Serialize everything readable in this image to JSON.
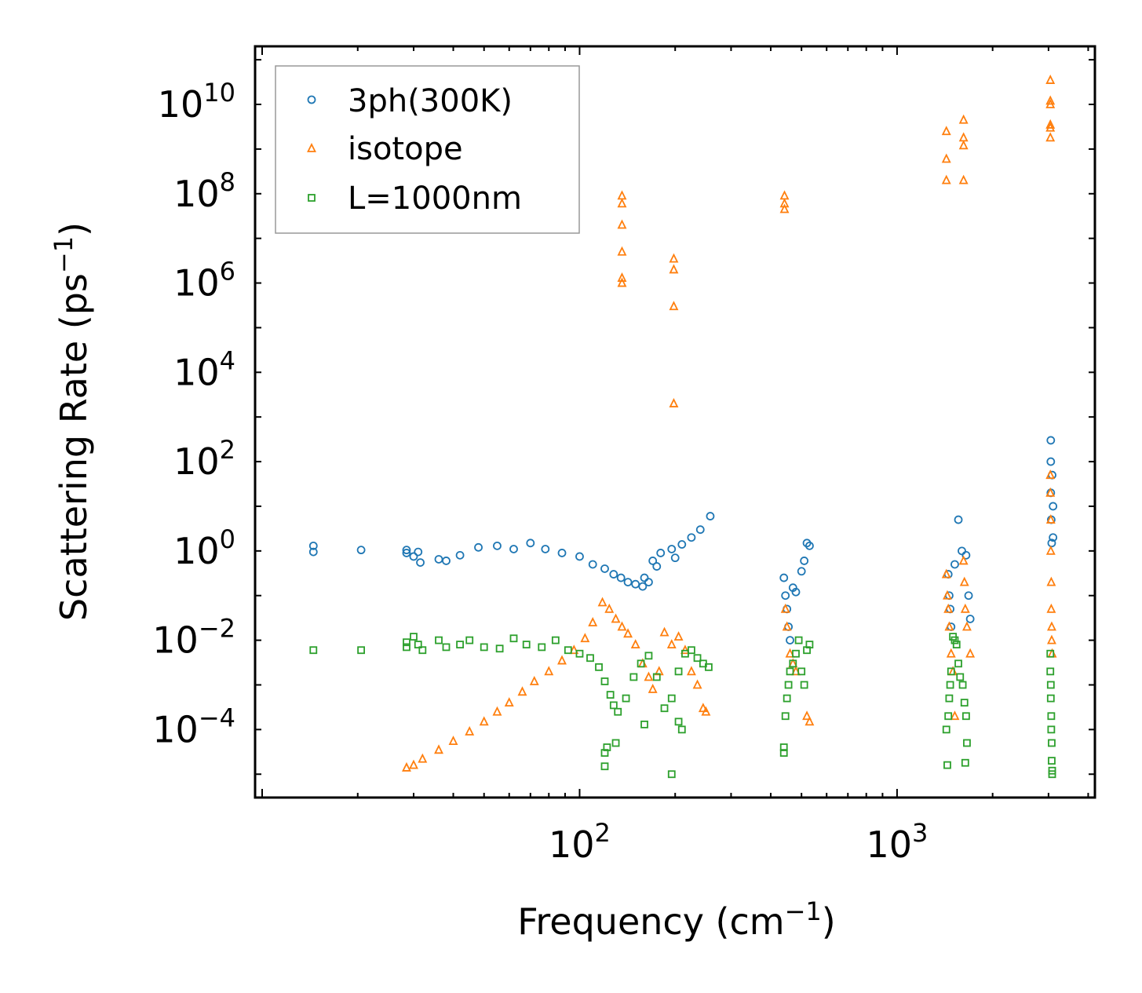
{
  "chart_data": {
    "type": "scatter",
    "xscale": "log",
    "yscale": "log",
    "xlim": [
      9.5,
      4200
    ],
    "ylim": [
      3e-06,
      200000000000.0
    ],
    "xlabel": "Frequency (cm",
    "xlabel_sup": "−1",
    "xlabel_end": ")",
    "ylabel": "Scattering Rate (ps",
    "ylabel_sup": "−1",
    "ylabel_end": ")",
    "x_ticks": [
      {
        "value": 100,
        "base": "10",
        "exp": "2"
      },
      {
        "value": 1000,
        "base": "10",
        "exp": "3"
      }
    ],
    "y_ticks": [
      {
        "value": 0.0001,
        "base": "10",
        "exp": "−4"
      },
      {
        "value": 0.01,
        "base": "10",
        "exp": "−2"
      },
      {
        "value": 1,
        "base": "10",
        "exp": "0"
      },
      {
        "value": 100,
        "base": "10",
        "exp": "2"
      },
      {
        "value": 10000.0,
        "base": "10",
        "exp": "4"
      },
      {
        "value": 1000000.0,
        "base": "10",
        "exp": "6"
      },
      {
        "value": 100000000.0,
        "base": "10",
        "exp": "8"
      },
      {
        "value": 10000000000.0,
        "base": "10",
        "exp": "10"
      }
    ],
    "legend_position": "top-left",
    "series": [
      {
        "name": "3ph(300K)",
        "marker": "circle",
        "color": "#1f77b4",
        "points": [
          [
            14.5,
            1.3
          ],
          [
            14.5,
            0.95
          ],
          [
            20.5,
            1.05
          ],
          [
            28.5,
            1.05
          ],
          [
            28.5,
            0.9
          ],
          [
            30,
            0.75
          ],
          [
            31,
            0.95
          ],
          [
            31.5,
            0.55
          ],
          [
            36,
            0.65
          ],
          [
            38,
            0.6
          ],
          [
            42,
            0.8
          ],
          [
            48,
            1.2
          ],
          [
            55,
            1.3
          ],
          [
            62,
            1.1
          ],
          [
            70,
            1.5
          ],
          [
            78,
            1.1
          ],
          [
            88,
            0.9
          ],
          [
            100,
            0.75
          ],
          [
            110,
            0.5
          ],
          [
            120,
            0.4
          ],
          [
            128,
            0.3
          ],
          [
            135,
            0.25
          ],
          [
            142,
            0.2
          ],
          [
            150,
            0.18
          ],
          [
            160,
            0.25
          ],
          [
            170,
            0.6
          ],
          [
            180,
            0.9
          ],
          [
            195,
            1.1
          ],
          [
            210,
            1.4
          ],
          [
            225,
            2.0
          ],
          [
            240,
            3.0
          ],
          [
            258,
            6.0
          ],
          [
            158,
            0.16
          ],
          [
            165,
            0.2
          ],
          [
            175,
            0.45
          ],
          [
            200,
            0.7
          ],
          [
            440,
            0.25
          ],
          [
            445,
            0.1
          ],
          [
            450,
            0.05
          ],
          [
            455,
            0.02
          ],
          [
            460,
            0.01
          ],
          [
            470,
            0.15
          ],
          [
            480,
            0.12
          ],
          [
            500,
            0.35
          ],
          [
            510,
            0.6
          ],
          [
            520,
            1.5
          ],
          [
            530,
            1.3
          ],
          [
            1450,
            0.3
          ],
          [
            1460,
            0.1
          ],
          [
            1470,
            0.05
          ],
          [
            1480,
            0.02
          ],
          [
            1520,
            0.5
          ],
          [
            1560,
            5.0
          ],
          [
            1600,
            1.0
          ],
          [
            1650,
            0.8
          ],
          [
            1680,
            0.1
          ],
          [
            1700,
            0.03
          ],
          [
            3050,
            300
          ],
          [
            3050,
            100
          ],
          [
            3050,
            20
          ],
          [
            3060,
            5
          ],
          [
            3070,
            1.5
          ],
          [
            3080,
            50
          ],
          [
            3100,
            10
          ],
          [
            3100,
            2
          ]
        ]
      },
      {
        "name": "isotope",
        "marker": "triangle",
        "color": "#ff7f0e",
        "points": [
          [
            28.5,
            1.4e-05
          ],
          [
            30,
            1.6e-05
          ],
          [
            32,
            2.2e-05
          ],
          [
            36,
            3.5e-05
          ],
          [
            40,
            5.5e-05
          ],
          [
            45,
            9e-05
          ],
          [
            50,
            0.00015
          ],
          [
            55,
            0.00025
          ],
          [
            60,
            0.0004
          ],
          [
            66,
            0.0007
          ],
          [
            72,
            0.0012
          ],
          [
            80,
            0.002
          ],
          [
            88,
            0.0035
          ],
          [
            96,
            0.006
          ],
          [
            104,
            0.011
          ],
          [
            110,
            0.025
          ],
          [
            118,
            0.07
          ],
          [
            124,
            0.05
          ],
          [
            130,
            0.03
          ],
          [
            136,
            0.02
          ],
          [
            142,
            0.014
          ],
          [
            150,
            0.008
          ],
          [
            158,
            0.003
          ],
          [
            165,
            0.0015
          ],
          [
            170,
            0.0008
          ],
          [
            178,
            0.002
          ],
          [
            185,
            0.015
          ],
          [
            195,
            0.008
          ],
          [
            205,
            0.012
          ],
          [
            215,
            0.006
          ],
          [
            225,
            0.002
          ],
          [
            235,
            0.001
          ],
          [
            245,
            0.0003
          ],
          [
            250,
            0.00025
          ],
          [
            136,
            90000000.0
          ],
          [
            136,
            60000000.0
          ],
          [
            136,
            20000000.0
          ],
          [
            136,
            5000000.0
          ],
          [
            136,
            1300000.0
          ],
          [
            136,
            1000000.0
          ],
          [
            198,
            3500000.0
          ],
          [
            198,
            2000000.0
          ],
          [
            198,
            300000.0
          ],
          [
            198,
            2000.0
          ],
          [
            442,
            90000000.0
          ],
          [
            442,
            60000000.0
          ],
          [
            442,
            45000000.0
          ],
          [
            1430,
            2500000000.0
          ],
          [
            1430,
            600000000.0
          ],
          [
            1430,
            200000000.0
          ],
          [
            1620,
            4500000000.0
          ],
          [
            1620,
            1800000000.0
          ],
          [
            1620,
            1200000000.0
          ],
          [
            1620,
            200000000.0
          ],
          [
            3040,
            35000000000.0
          ],
          [
            3040,
            12000000000.0
          ],
          [
            3040,
            10000000000.0
          ],
          [
            3040,
            3500000000.0
          ],
          [
            3040,
            3000000000.0
          ],
          [
            3040,
            1800000000.0
          ],
          [
            445,
            0.05
          ],
          [
            450,
            0.02
          ],
          [
            460,
            0.005
          ],
          [
            470,
            0.003
          ],
          [
            480,
            0.002
          ],
          [
            520,
            0.0002
          ],
          [
            530,
            0.00015
          ],
          [
            1430,
            0.3
          ],
          [
            1440,
            0.1
          ],
          [
            1450,
            0.05
          ],
          [
            1460,
            0.02
          ],
          [
            1480,
            0.005
          ],
          [
            1500,
            0.002
          ],
          [
            1520,
            0.0002
          ],
          [
            1620,
            0.6
          ],
          [
            1630,
            0.2
          ],
          [
            1640,
            0.05
          ],
          [
            1660,
            0.02
          ],
          [
            1700,
            0.005
          ],
          [
            3040,
            50
          ],
          [
            3040,
            20
          ],
          [
            3050,
            5
          ],
          [
            3050,
            1
          ],
          [
            3060,
            0.2
          ],
          [
            3060,
            0.05
          ],
          [
            3070,
            0.02
          ],
          [
            3070,
            0.01
          ],
          [
            3080,
            0.005
          ]
        ]
      },
      {
        "name": "L=1000nm",
        "marker": "square",
        "color": "#2ca02c",
        "points": [
          [
            14.5,
            0.006
          ],
          [
            20.5,
            0.006
          ],
          [
            28.5,
            0.007
          ],
          [
            28.5,
            0.009
          ],
          [
            30,
            0.012
          ],
          [
            31,
            0.008
          ],
          [
            32,
            0.006
          ],
          [
            36,
            0.01
          ],
          [
            38,
            0.007
          ],
          [
            42,
            0.008
          ],
          [
            45,
            0.01
          ],
          [
            50,
            0.007
          ],
          [
            56,
            0.0065
          ],
          [
            62,
            0.011
          ],
          [
            68,
            0.008
          ],
          [
            76,
            0.007
          ],
          [
            84,
            0.01
          ],
          [
            92,
            0.006
          ],
          [
            100,
            0.005
          ],
          [
            108,
            0.004
          ],
          [
            115,
            0.0025
          ],
          [
            120,
            0.0012
          ],
          [
            125,
            0.0006
          ],
          [
            128,
            0.00035
          ],
          [
            132,
            0.00025
          ],
          [
            140,
            0.0005
          ],
          [
            148,
            0.0015
          ],
          [
            156,
            0.003
          ],
          [
            165,
            0.0045
          ],
          [
            175,
            0.0015
          ],
          [
            185,
            0.0003
          ],
          [
            195,
            0.0005
          ],
          [
            205,
            0.002
          ],
          [
            215,
            0.005
          ],
          [
            225,
            0.006
          ],
          [
            235,
            0.004
          ],
          [
            245,
            0.003
          ],
          [
            255,
            0.0025
          ],
          [
            122,
            4e-05
          ],
          [
            120,
            3e-05
          ],
          [
            130,
            5e-05
          ],
          [
            120,
            1.5e-05
          ],
          [
            195,
            1e-05
          ],
          [
            205,
            0.00015
          ],
          [
            210,
            0.0001
          ],
          [
            160,
            0.00013
          ],
          [
            440,
            4e-05
          ],
          [
            440,
            3e-05
          ],
          [
            445,
            0.0002
          ],
          [
            450,
            0.0005
          ],
          [
            455,
            0.001
          ],
          [
            460,
            0.002
          ],
          [
            470,
            0.003
          ],
          [
            480,
            0.005
          ],
          [
            490,
            0.01
          ],
          [
            500,
            0.002
          ],
          [
            510,
            0.001
          ],
          [
            520,
            0.006
          ],
          [
            530,
            0.008
          ],
          [
            1430,
            0.0001
          ],
          [
            1450,
            0.0002
          ],
          [
            1460,
            0.0005
          ],
          [
            1470,
            0.001
          ],
          [
            1480,
            0.002
          ],
          [
            1500,
            0.012
          ],
          [
            1520,
            0.01
          ],
          [
            1540,
            0.008
          ],
          [
            1560,
            0.003
          ],
          [
            1580,
            0.0015
          ],
          [
            1610,
            0.001
          ],
          [
            1630,
            0.0004
          ],
          [
            1650,
            0.0002
          ],
          [
            1660,
            5e-05
          ],
          [
            1440,
            1.6e-05
          ],
          [
            1640,
            1.8e-05
          ],
          [
            3040,
            0.005
          ],
          [
            3040,
            0.002
          ],
          [
            3050,
            0.001
          ],
          [
            3050,
            0.0005
          ],
          [
            3060,
            0.0002
          ],
          [
            3060,
            0.0001
          ],
          [
            3070,
            5e-05
          ],
          [
            3070,
            2e-05
          ],
          [
            3080,
            1.2e-05
          ],
          [
            3080,
            1e-05
          ]
        ]
      }
    ]
  }
}
